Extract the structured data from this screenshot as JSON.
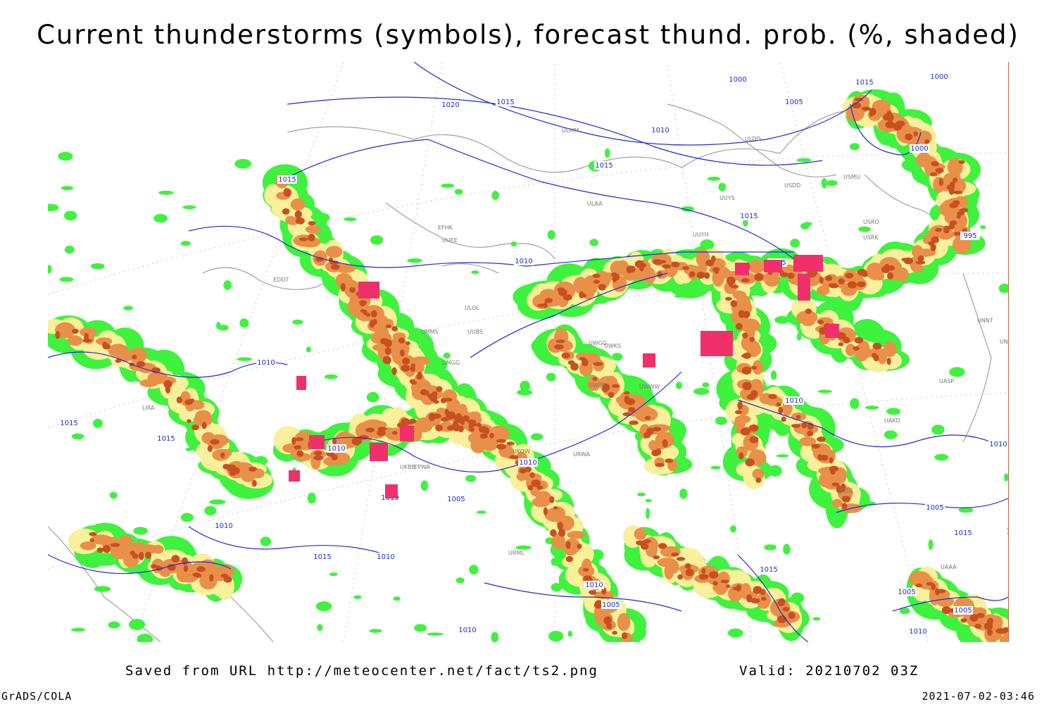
{
  "title": "Current thunderstorms (symbols), forecast thund. prob. (%, shaded)",
  "footer": {
    "source": "Saved from URL http://meteocenter.net/fact/ts2.png",
    "valid": "Valid: 20210702 03Z",
    "credit": "GrADS/COLA",
    "timestamp": "2021-07-02-03:46"
  },
  "colors": {
    "prob_low": "#3ef23e",
    "prob_mid": "#f8f09a",
    "prob_high": "#e8904a",
    "prob_very_high": "#c85020",
    "thunderstorm_symbol": "#f0306a",
    "isobar": "#1e2ad8",
    "coastline": "#a0a0a0"
  },
  "isobar_labels": [
    "1020",
    "1015",
    "1000",
    "1005",
    "1010",
    "1015",
    "1000",
    "1000",
    "995",
    "1010",
    "1015",
    "1015",
    "1010",
    "1015",
    "1015",
    "1015",
    "1010",
    "1010",
    "1005",
    "1010",
    "1010",
    "1010",
    "1010",
    "1005",
    "1010",
    "1015",
    "1010",
    "1010",
    "1005",
    "1015",
    "1010",
    "1005",
    "1015",
    "1005",
    "1010",
    "1015",
    "1015"
  ],
  "station_labels": [
    "ULMM",
    "ULDD",
    "USDD",
    "USMU",
    "ULAA",
    "UUYS",
    "USRO",
    "USRK",
    "UUYH",
    "EFHK",
    "UUEE",
    "UNNT",
    "UNBB",
    "UASP",
    "UAKD",
    "URML",
    "UWGG",
    "UWKS",
    "UWWW",
    "UWPP",
    "LIRA",
    "EDDT",
    "EPWA",
    "UMMS",
    "ULOL",
    "UUBS",
    "UMGG",
    "UKBB",
    "UKOW",
    "URWA",
    "UATG",
    "UAAA"
  ],
  "thunderstorm_cells": 14
}
